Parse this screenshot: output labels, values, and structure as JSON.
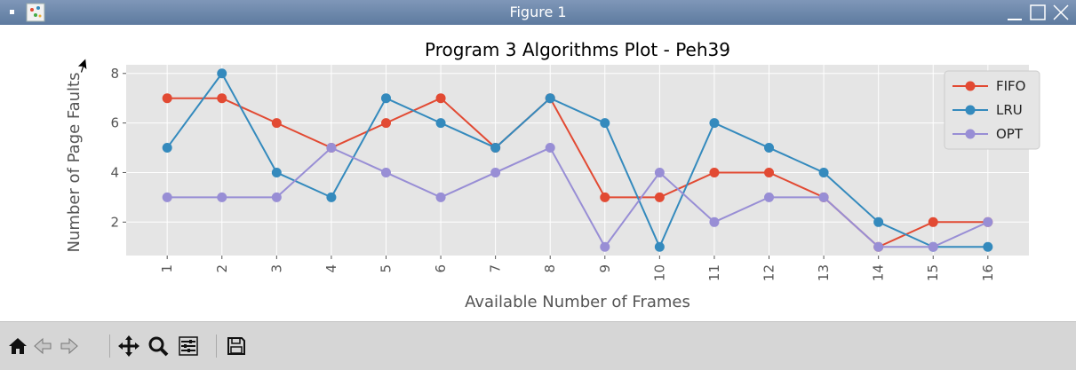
{
  "window": {
    "title": "Figure 1"
  },
  "toolbar": {
    "buttons": [
      {
        "name": "home-button",
        "icon": "home-icon"
      },
      {
        "name": "back-button",
        "icon": "arrow-left-icon"
      },
      {
        "name": "forward-button",
        "icon": "arrow-right-icon"
      },
      {
        "name": "pan-button",
        "icon": "move-icon"
      },
      {
        "name": "zoom-button",
        "icon": "magnifier-icon"
      },
      {
        "name": "configure-subplots-button",
        "icon": "sliders-icon"
      },
      {
        "name": "save-button",
        "icon": "floppy-disk-icon"
      }
    ]
  },
  "colors": {
    "FIFO": "#e24a33",
    "LRU": "#348abd",
    "OPT": "#988ed5",
    "background": "#e5e5e5",
    "grid": "#ffffff"
  },
  "chart_data": {
    "type": "line",
    "title": "Program 3 Algorithms Plot - Peh39",
    "xlabel": "Available Number of Frames",
    "ylabel": "Number of Page Faults",
    "x": [
      1,
      2,
      3,
      4,
      5,
      6,
      7,
      8,
      9,
      10,
      11,
      12,
      13,
      14,
      15,
      16
    ],
    "xticklabels": [
      "1",
      "2",
      "3",
      "4",
      "5",
      "6",
      "7",
      "8",
      "9",
      "10",
      "11",
      "12",
      "13",
      "14",
      "15",
      "16"
    ],
    "yticks": [
      2,
      4,
      6,
      8
    ],
    "yticklabels": [
      "2",
      "4",
      "6",
      "8"
    ],
    "xlim": [
      0.25,
      16.75
    ],
    "ylim": [
      0.65,
      8.35
    ],
    "grid": true,
    "legend_position": "top-right",
    "series": [
      {
        "name": "FIFO",
        "values": [
          7,
          7,
          6,
          5,
          6,
          7,
          5,
          7,
          3,
          3,
          4,
          4,
          3,
          1,
          2,
          2
        ]
      },
      {
        "name": "LRU",
        "values": [
          5,
          8,
          4,
          3,
          7,
          6,
          5,
          7,
          6,
          1,
          6,
          5,
          4,
          2,
          1,
          1
        ]
      },
      {
        "name": "OPT",
        "values": [
          3,
          3,
          3,
          5,
          4,
          3,
          4,
          5,
          1,
          4,
          2,
          3,
          3,
          1,
          1,
          2
        ]
      }
    ]
  }
}
